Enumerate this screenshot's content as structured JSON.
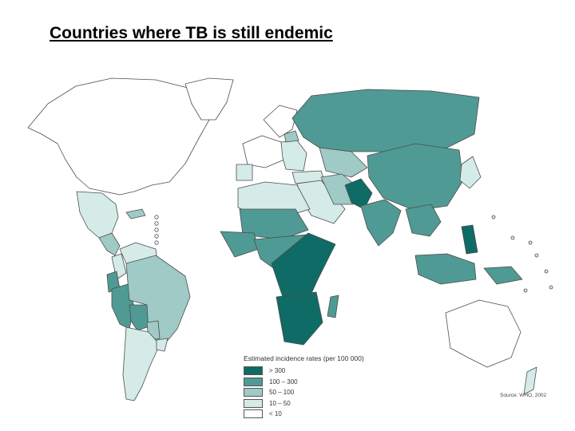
{
  "title": "Countries where TB is still endemic",
  "legend": {
    "title": "Estimated incidence rates (per 100 000)",
    "classes": [
      {
        "label": "> 300",
        "color": "#0e6b66"
      },
      {
        "label": "100 – 300",
        "color": "#4f9a94"
      },
      {
        "label": "50 – 100",
        "color": "#9fcac5"
      },
      {
        "label": "10 – 50",
        "color": "#d5ebe8"
      },
      {
        "label": "< 10",
        "color": "#ffffff"
      }
    ]
  },
  "source": "Source: WHO, 2002",
  "map_regions": [
    {
      "name": "north-america",
      "class": 4
    },
    {
      "name": "greenland",
      "class": 4
    },
    {
      "name": "mexico",
      "class": 3
    },
    {
      "name": "central-america",
      "class": 2
    },
    {
      "name": "caribbean",
      "class": 2
    },
    {
      "name": "venezuela-guyanas",
      "class": 3
    },
    {
      "name": "colombia",
      "class": 3
    },
    {
      "name": "ecuador",
      "class": 1
    },
    {
      "name": "peru",
      "class": 1
    },
    {
      "name": "bolivia",
      "class": 1
    },
    {
      "name": "brazil",
      "class": 2
    },
    {
      "name": "paraguay",
      "class": 2
    },
    {
      "name": "argentina-chile",
      "class": 3
    },
    {
      "name": "uruguay",
      "class": 3
    },
    {
      "name": "western-europe",
      "class": 4
    },
    {
      "name": "scandinavia",
      "class": 4
    },
    {
      "name": "iberia",
      "class": 3
    },
    {
      "name": "eastern-europe",
      "class": 3
    },
    {
      "name": "baltics",
      "class": 2
    },
    {
      "name": "russia",
      "class": 1
    },
    {
      "name": "central-asia",
      "class": 2
    },
    {
      "name": "turkey",
      "class": 3
    },
    {
      "name": "middle-east",
      "class": 3
    },
    {
      "name": "iran",
      "class": 2
    },
    {
      "name": "afghanistan-pakistan",
      "class": 0
    },
    {
      "name": "china-mongolia",
      "class": 1
    },
    {
      "name": "india",
      "class": 1
    },
    {
      "name": "southeast-asia",
      "class": 1
    },
    {
      "name": "japan-korea",
      "class": 3
    },
    {
      "name": "indonesia",
      "class": 1
    },
    {
      "name": "philippines",
      "class": 0
    },
    {
      "name": "papua-new-guinea",
      "class": 1
    },
    {
      "name": "australia",
      "class": 4
    },
    {
      "name": "new-zealand",
      "class": 3
    },
    {
      "name": "north-africa",
      "class": 3
    },
    {
      "name": "sahel",
      "class": 1
    },
    {
      "name": "west-africa",
      "class": 1
    },
    {
      "name": "central-africa",
      "class": 1
    },
    {
      "name": "east-africa",
      "class": 0
    },
    {
      "name": "southern-africa",
      "class": 0
    },
    {
      "name": "madagascar",
      "class": 1
    }
  ]
}
